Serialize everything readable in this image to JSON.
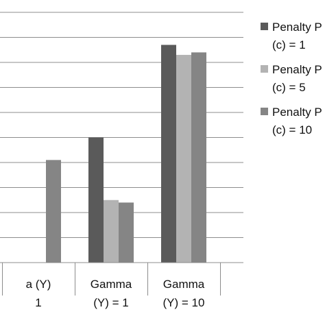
{
  "chart_data": {
    "type": "bar",
    "title": "",
    "xlabel": "",
    "ylabel": "",
    "grid": true,
    "legend_position": "right",
    "categories": [
      [
        "a (Y)",
        "1"
      ],
      [
        "Gamma",
        "(Y) = 1"
      ],
      [
        "Gamma",
        "(Y) = 10"
      ]
    ],
    "ylim": [
      0,
      10
    ],
    "series": [
      {
        "name_lines": [
          "Penalty P",
          "(c) = 1"
        ],
        "color": "#5a5a5a",
        "values": [
          null,
          5.0,
          8.7
        ]
      },
      {
        "name_lines": [
          "Penalty P",
          "(c) = 5"
        ],
        "color": "#b3b3b3",
        "values": [
          null,
          2.5,
          8.3
        ]
      },
      {
        "name_lines": [
          "Penalty P",
          "(c) = 10"
        ],
        "color": "#858585",
        "values": [
          4.1,
          2.4,
          8.4
        ]
      }
    ]
  }
}
